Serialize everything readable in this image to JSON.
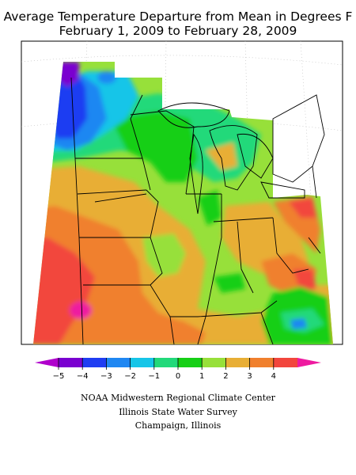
{
  "title_line1": "Average Temperature Departure from Mean in Degrees F",
  "title_line2": "February 1, 2009 to February 28, 2009",
  "legend": {
    "ticks": [
      "−5",
      "−4",
      "−3",
      "−2",
      "−1",
      "0",
      "1",
      "2",
      "3",
      "4"
    ],
    "colors": [
      "#7a00d0",
      "#1f3df2",
      "#1f87f2",
      "#16c5e8",
      "#22d97a",
      "#17cf17",
      "#97e03a",
      "#e8ae35",
      "#f0802d",
      "#f2463d"
    ],
    "under_color": "#b000cc",
    "over_color": "#ee1aa0"
  },
  "credits": [
    "NOAA Midwestern Regional Climate Center",
    "Illinois State Water Survey",
    "Champaign, Illinois"
  ]
}
